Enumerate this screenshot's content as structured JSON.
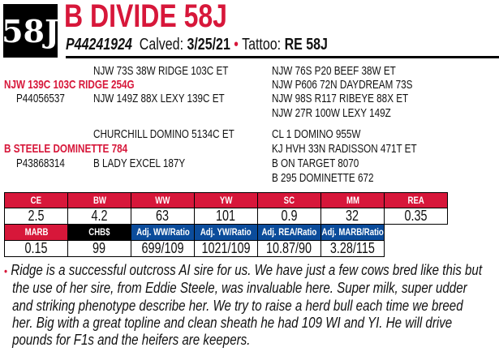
{
  "header": {
    "logo_text": "58J",
    "title": "B DIVIDE 58J",
    "registration": "P44241924",
    "calved_label": "Calved:",
    "calved_value": "3/25/21",
    "tattoo_label": "Tattoo:",
    "tattoo_value": "RE 58J"
  },
  "pedigree": {
    "sire": {
      "name": "NJW 139C 103C RIDGE 254G",
      "reg": "P44056537",
      "sire": "NJW 73S 38W RIDGE 103C ET",
      "dam": "NJW 149Z 88X LEXY 139C ET",
      "sire_sire": "NJW 76S P20 BEEF 38W ET",
      "sire_dam": "NJW P606 72N DAYDREAM 73S",
      "dam_sire": "NJW 98S R117 RIBEYE 88X ET",
      "dam_dam": "NJW 27R 100W LEXY 149Z"
    },
    "dam": {
      "name": "B STEELE DOMINETTE 784",
      "reg": "P43868314",
      "sire": "CHURCHILL DOMINO 5134C ET",
      "dam": "B LADY EXCEL 187Y",
      "sire_sire": "CL 1 DOMINO 955W",
      "sire_dam": "KJ HVH 33N RADISSON 471T ET",
      "dam_sire": "B ON TARGET 8070",
      "dam_dam": "B 295 DOMINETTE 672"
    }
  },
  "epds": {
    "row1_headers": [
      "CE",
      "BW",
      "WW",
      "YW",
      "SC",
      "MM",
      "REA"
    ],
    "row1_values": [
      "2.5",
      "4.2",
      "63",
      "101",
      "0.9",
      "32",
      "0.35"
    ],
    "row2_headers": [
      "MARB",
      "CHB$",
      "Adj. WW/Ratio",
      "Adj. YW/Ratio",
      "Adj. REA/Ratio",
      "Adj. MARB/Ratio"
    ],
    "row2_values": [
      "0.15",
      "99",
      "699/109",
      "1021/109",
      "10.87/90",
      "3.28/115"
    ]
  },
  "comment": {
    "lines": [
      "Ridge is a successful outcross AI sire for us. We have just a few cows bred like this but",
      "the use of her sire, from Eddie Steele, was invaluable here. Super milk, super udder",
      "and striking phenotype describe her. We try to raise a herd bull each time we breed",
      "her. Big with a great topline and clean sheath he had 109 WI and YI. He will drive",
      "pounds for F1s and the heifers are keepers."
    ]
  },
  "colors": {
    "red": "#d7173a",
    "blue": "#0b4c9b",
    "black": "#000000"
  }
}
